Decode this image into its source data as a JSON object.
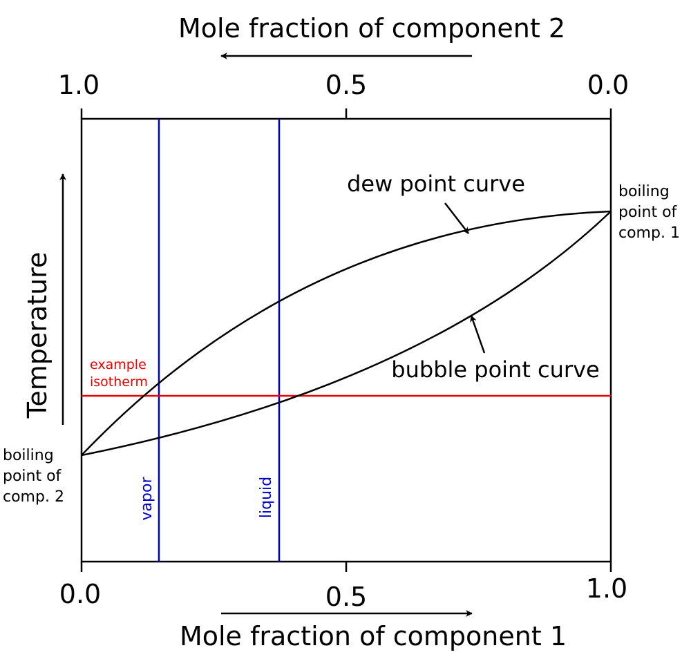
{
  "top_axis": {
    "title": "Mole fraction of component 2",
    "ticks": [
      "1.0",
      "0.5",
      "0.0"
    ]
  },
  "bottom_axis": {
    "title": "Mole fraction of component 1",
    "ticks": [
      "0.0",
      "0.5",
      "1.0"
    ]
  },
  "y_axis": {
    "title": "Temperature"
  },
  "labels": {
    "dew_point": "dew point curve",
    "bubble_point": "bubble point curve",
    "boiling_comp1": [
      "boiling",
      "point of",
      "comp. 1"
    ],
    "boiling_comp2": [
      "boiling",
      "point of",
      "comp. 2"
    ],
    "isotherm": [
      "example",
      "isotherm"
    ],
    "vapor": "vapor",
    "liquid": "liquid"
  },
  "colors": {
    "curves": "#000000",
    "isotherm": "#ee0000",
    "tie_lines": "#0000cc"
  }
}
